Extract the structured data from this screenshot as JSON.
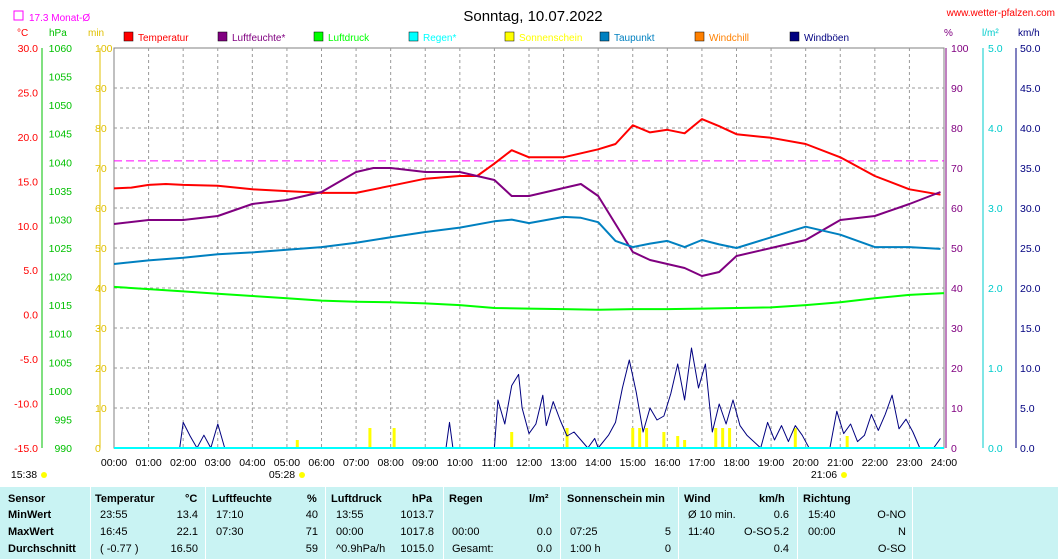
{
  "header": {
    "title": "Sonntag, 10.07.2022",
    "website": "www.wetter-pfalzen.com",
    "month_avg": "17.3 Monat-Ø"
  },
  "units": {
    "left1": "°C",
    "left2": "hPa",
    "left3": "min",
    "right1": "%",
    "right2": "l/m²",
    "right3": "km/h"
  },
  "legend": [
    {
      "label": "Temperatur",
      "color": "#ff0000"
    },
    {
      "label": "Luftfeuchte*",
      "color": "#800080"
    },
    {
      "label": "Luftdruck",
      "color": "#00ff00"
    },
    {
      "label": "Regen*",
      "color": "#00ffff"
    },
    {
      "label": "Sonnenschein",
      "color": "#ffff00"
    },
    {
      "label": "Taupunkt",
      "color": "#0080c0"
    },
    {
      "label": "Windchill",
      "color": "#ff8000"
    },
    {
      "label": "Windböen",
      "color": "#000080"
    }
  ],
  "time_labels": {
    "sunrise": "05:28",
    "sunset": "21:06",
    "now": "15:38"
  },
  "chart_data": {
    "type": "line",
    "x_ticks": [
      "00:00",
      "01:00",
      "02:00",
      "03:00",
      "04:00",
      "05:00",
      "06:00",
      "07:00",
      "08:00",
      "09:00",
      "10:00",
      "11:00",
      "12:00",
      "13:00",
      "14:00",
      "15:00",
      "16:00",
      "17:00",
      "18:00",
      "19:00",
      "20:00",
      "21:00",
      "22:00",
      "23:00",
      "24:00"
    ],
    "axes": {
      "temperature_c": {
        "range": [
          -15,
          30
        ],
        "ticks": [
          "30.0",
          "25.0",
          "20.0",
          "15.0",
          "10.0",
          "5.0",
          "0.0",
          "-5.0",
          "-10.0",
          "-15.0"
        ]
      },
      "pressure_hpa": {
        "range": [
          990,
          1060
        ],
        "ticks": [
          "1060",
          "1055",
          "1050",
          "1045",
          "1040",
          "1035",
          "1030",
          "1025",
          "1020",
          "1015",
          "1010",
          "1005",
          "1000",
          "995",
          "990"
        ]
      },
      "sunshine_min": {
        "range": [
          0,
          100
        ],
        "ticks": [
          "100",
          "90",
          "80",
          "70",
          "60",
          "50",
          "40",
          "30",
          "20",
          "10",
          "0"
        ]
      },
      "humidity_pct": {
        "range": [
          0,
          100
        ],
        "ticks": [
          "100",
          "90",
          "80",
          "70",
          "60",
          "50",
          "40",
          "30",
          "20",
          "10",
          "0"
        ]
      },
      "rain_lm2": {
        "range": [
          0,
          5
        ],
        "ticks": [
          "5.0",
          "4.0",
          "3.0",
          "2.0",
          "1.0",
          "0.0"
        ]
      },
      "wind_kmh": {
        "range": [
          0,
          50
        ],
        "ticks": [
          "50.0",
          "45.0",
          "40.0",
          "35.0",
          "30.0",
          "25.0",
          "20.0",
          "15.0",
          "10.0",
          "5.0",
          "0.0"
        ]
      }
    },
    "month_avg_temperature": 17.3,
    "series": [
      {
        "name": "Temperatur",
        "axis": "temperature_c",
        "color": "#ff0000",
        "x": [
          0,
          0.5,
          1,
          1.5,
          2,
          3,
          4,
          5,
          6,
          7,
          8,
          9,
          10,
          10.5,
          11,
          11.5,
          12,
          13,
          14,
          14.5,
          15,
          15.5,
          16,
          16.5,
          17,
          17.5,
          18,
          19,
          20,
          21,
          22,
          23,
          23.9
        ],
        "y": [
          14.2,
          14.3,
          14.6,
          14.7,
          14.6,
          14.5,
          14.1,
          13.9,
          13.7,
          13.7,
          14.5,
          15.3,
          15.6,
          15.6,
          17.0,
          18.5,
          17.7,
          17.7,
          18.6,
          19.2,
          21.3,
          20.5,
          20.8,
          20.4,
          22.0,
          21.2,
          20.3,
          19.9,
          19.2,
          17.7,
          15.6,
          14.1,
          13.5
        ]
      },
      {
        "name": "Luftfeuchte*",
        "axis": "humidity_pct",
        "color": "#800080",
        "x": [
          0,
          1,
          2,
          3,
          4,
          5,
          6,
          7,
          7.5,
          8,
          9,
          10,
          10.5,
          11,
          11.5,
          12,
          13,
          13.5,
          14,
          14.5,
          15,
          15.5,
          16,
          16.5,
          17,
          17.5,
          18,
          19,
          20,
          21,
          22,
          23,
          23.9
        ],
        "y": [
          56,
          57,
          57,
          58,
          61,
          62,
          64,
          69,
          70,
          70,
          69,
          69,
          68,
          67,
          63,
          63,
          65,
          66,
          63,
          56,
          49,
          47,
          46,
          45,
          43,
          44,
          48,
          50,
          52,
          57,
          58,
          61,
          64
        ]
      },
      {
        "name": "Luftdruck",
        "axis": "pressure_hpa",
        "color": "#00ff00",
        "x": [
          0,
          1,
          2,
          3,
          4,
          5,
          6,
          7,
          8,
          9,
          10,
          11,
          12,
          13,
          14,
          15,
          16,
          17,
          18,
          19,
          20,
          21,
          22,
          23,
          24
        ],
        "y": [
          1018.2,
          1017.8,
          1017.4,
          1017.0,
          1016.6,
          1016.2,
          1015.8,
          1015.6,
          1015.5,
          1015.3,
          1015.0,
          1014.5,
          1014.4,
          1014.3,
          1014.2,
          1014.3,
          1014.3,
          1014.4,
          1014.5,
          1014.6,
          1015.0,
          1015.5,
          1016.2,
          1016.8,
          1017.1
        ]
      },
      {
        "name": "Taupunkt",
        "axis": "temperature_c",
        "color": "#0080c0",
        "x": [
          0,
          1,
          2,
          3,
          4,
          5,
          6,
          7,
          8,
          9,
          10,
          11,
          11.5,
          12,
          13,
          13.5,
          14,
          14.5,
          15,
          15.5,
          16,
          16.5,
          17,
          17.5,
          18,
          19,
          20,
          21,
          22,
          23,
          23.9
        ],
        "y": [
          5.7,
          6.1,
          6.4,
          6.8,
          7.0,
          7.3,
          7.6,
          8.1,
          8.7,
          9.3,
          9.8,
          10.5,
          10.7,
          10.3,
          11.0,
          10.9,
          10.4,
          8.3,
          7.6,
          8.0,
          8.3,
          7.6,
          8.4,
          7.9,
          7.5,
          8.7,
          9.9,
          9.0,
          7.6,
          7.6,
          7.4
        ]
      },
      {
        "name": "Windböen",
        "axis": "wind_kmh",
        "color": "#000080",
        "x": [
          0,
          1,
          1.9,
          2.0,
          2.2,
          2.4,
          2.6,
          2.8,
          3.0,
          3.2,
          3.4,
          3.5,
          9.6,
          9.7,
          9.8,
          10.5,
          11.0,
          11.1,
          11.3,
          11.5,
          11.7,
          11.8,
          12.0,
          12.2,
          12.4,
          12.5,
          12.7,
          12.9,
          13.1,
          13.3,
          13.5,
          13.7,
          13.9,
          14.0,
          14.3,
          14.5,
          14.7,
          14.9,
          15.1,
          15.3,
          15.5,
          15.7,
          15.9,
          16.1,
          16.3,
          16.5,
          16.7,
          16.9,
          17.1,
          17.3,
          17.5,
          17.7,
          17.9,
          18.1,
          18.3,
          18.5,
          18.7,
          18.9,
          19.1,
          19.3,
          19.5,
          19.7,
          19.9,
          20.1,
          20.3,
          20.5,
          20.7,
          20.9,
          21.1,
          21.3,
          21.5,
          21.7,
          21.9,
          22.1,
          22.3,
          22.5,
          22.7,
          22.9,
          23.1,
          23.3,
          23.5,
          23.7,
          23.9
        ],
        "y": [
          0,
          0,
          0,
          3.2,
          1.5,
          0,
          1.6,
          0,
          3.0,
          0,
          0,
          0,
          0,
          3.2,
          0,
          0,
          0,
          6.0,
          3.0,
          7.8,
          9.2,
          5.0,
          1.8,
          3.0,
          6.6,
          2.8,
          5.8,
          3.5,
          1.5,
          2.0,
          1.0,
          0,
          1.2,
          0,
          1.6,
          3.2,
          7.5,
          11.0,
          7.0,
          2.0,
          5.0,
          3.5,
          4.0,
          6.8,
          10.5,
          6.0,
          12.5,
          7.5,
          10.5,
          2.0,
          5.5,
          3.0,
          6.0,
          2.8,
          1.6,
          0.8,
          0,
          3.2,
          1.0,
          2.8,
          0.8,
          2.8,
          1.6,
          0,
          0,
          0,
          0,
          4.6,
          1.8,
          3.0,
          0.8,
          1.6,
          4.2,
          2.2,
          4.2,
          6.6,
          2.4,
          3.6,
          2.0,
          0,
          0,
          0,
          1.2
        ]
      },
      {
        "name": "Sonnenschein",
        "axis": "sunshine_min",
        "color": "#ffff00",
        "type": "bar",
        "x": [
          5.3,
          7.4,
          8.1,
          11.5,
          13.1,
          15.0,
          15.2,
          15.4,
          15.9,
          16.3,
          16.5,
          17.4,
          17.6,
          17.8,
          19.7,
          21.2
        ],
        "y": [
          2,
          5,
          5,
          4,
          5,
          5,
          5,
          5,
          4,
          3,
          2,
          5,
          5,
          5,
          5,
          3
        ]
      },
      {
        "name": "Regen*",
        "axis": "rain_lm2",
        "color": "#00ffff",
        "x": [
          0,
          24
        ],
        "y": [
          0,
          0
        ]
      }
    ]
  },
  "table": {
    "headers": {
      "sensor": "Sensor",
      "temp": "Temperatur",
      "temp_unit": "°C",
      "hum": "Luftfeuchte",
      "hum_unit": "%",
      "press": "Luftdruck",
      "press_unit": "hPa",
      "rain": "Regen",
      "rain_unit": "l/m²",
      "sun": "Sonnenschein min",
      "wind": "Wind",
      "wind_unit": "km/h",
      "dir": "Richtung"
    },
    "rows": [
      {
        "label": "MinWert",
        "temp_time": "23:55",
        "temp_val": "13.4",
        "hum_time": "17:10",
        "hum_val": "40",
        "press_time": "13:55",
        "press_val": "1013.7",
        "rain_time": "",
        "rain_val": "",
        "sun_time": "",
        "sun_val": "",
        "wind_time": "Ø 10 min.",
        "wind_dir": "",
        "wind_val": "0.6",
        "dir_time": "15:40",
        "dir_val": "O-NO"
      },
      {
        "label": "MaxWert",
        "temp_time": "16:45",
        "temp_val": "22.1",
        "hum_time": "07:30",
        "hum_val": "71",
        "press_time": "00:00",
        "press_val": "1017.8",
        "rain_time": "00:00",
        "rain_val": "0.0",
        "sun_time": "07:25",
        "sun_val": "5",
        "wind_time": "11:40",
        "wind_dir": "O-SO",
        "wind_val": "5.2",
        "dir_time": "00:00",
        "dir_val": "N"
      },
      {
        "label": "Durchschnitt",
        "temp_time": "( -0.77 )",
        "temp_val": "16.50",
        "hum_time": "",
        "hum_val": "59",
        "press_time": "^0.9hPa/h",
        "press_val": "1015.0",
        "rain_time": "Gesamt:",
        "rain_val": "0.0",
        "sun_time": "1:00 h",
        "sun_val": "0",
        "wind_time": "",
        "wind_dir": "",
        "wind_val": "0.4",
        "dir_time": "",
        "dir_val": "O-SO"
      }
    ]
  }
}
